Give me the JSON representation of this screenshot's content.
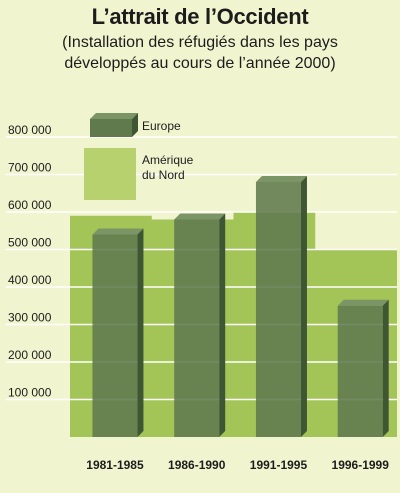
{
  "header": {
    "title": "L’attrait de l’Occident",
    "subtitle_line1": "(Installation des réfugiés dans les pays",
    "subtitle_line2": "développés au cours de l’année 2000)"
  },
  "chart_data": {
    "type": "bar",
    "title": "L’attrait de l’Occident",
    "subtitle": "(Installation des réfugiés dans les pays développés au cours de l’année 2000)",
    "categories": [
      "1981-1985",
      "1986-1990",
      "1991-1995",
      "1996-1999"
    ],
    "series": [
      {
        "name": "Amérique du Nord",
        "values": [
          590000,
          580000,
          600000,
          500000
        ]
      },
      {
        "name": "Europe",
        "values": [
          540000,
          580000,
          680000,
          350000
        ]
      }
    ],
    "yticks": [
      "100 000",
      "200 000",
      "300 000",
      "400 000",
      "500 000",
      "600 000",
      "700 000",
      "800 000"
    ],
    "ylim": [
      0,
      800000
    ],
    "legend_position": "top-left",
    "colors": {
      "background": "#f1f5cf",
      "north_america": "#a3c457",
      "europe": "#607a4e",
      "gridline": "#ffffff"
    }
  }
}
